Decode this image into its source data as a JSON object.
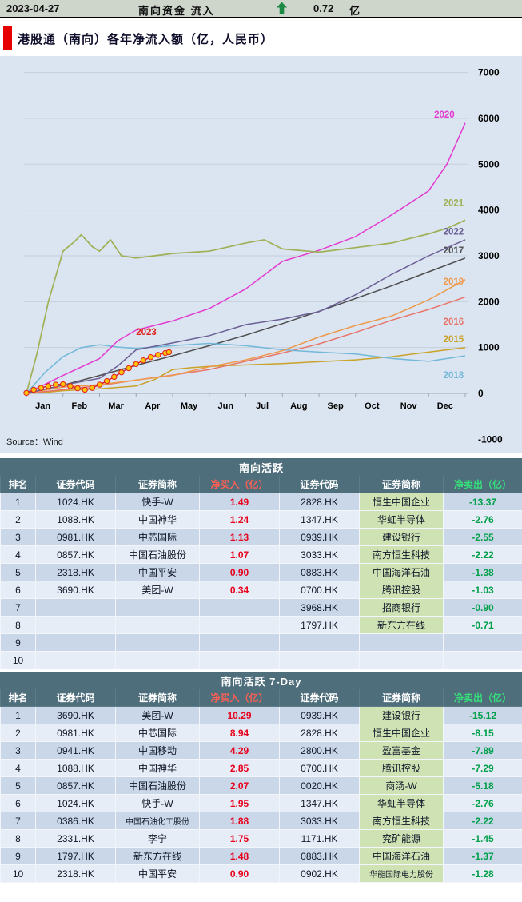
{
  "topbar": {
    "date": "2023-04-27",
    "label": "南向资金 流入",
    "value": "0.72",
    "unit": "亿",
    "arrow_icon": "up-arrow",
    "arrow_color": "#1d8a43"
  },
  "title": {
    "text": "港股通（南向）各年净流入额（亿，人民币）"
  },
  "chart_data": {
    "type": "line",
    "title": "港股通（南向）各年净流入额（亿，人民币）",
    "ylabel": "净流入额（亿，人民币）",
    "ylim": [
      -1000,
      7000
    ],
    "yticks": [
      7000,
      6000,
      5000,
      4000,
      3000,
      2000,
      1000,
      0,
      -1000
    ],
    "xticklabels": [
      "Jan",
      "Feb",
      "Mar",
      "Apr",
      "May",
      "Jun",
      "Jul",
      "Aug",
      "Sep",
      "Oct",
      "Nov",
      "Dec"
    ],
    "grid": true,
    "legend_position": "inline-right",
    "source": "Source：Wind",
    "series": [
      {
        "name": "2015",
        "color": "#c9a227",
        "label": [
          11.4,
          1120
        ],
        "points": [
          [
            0,
            0
          ],
          [
            0.5,
            20
          ],
          [
            1,
            60
          ],
          [
            2,
            100
          ],
          [
            3,
            160
          ],
          [
            3.5,
            300
          ],
          [
            4,
            520
          ],
          [
            4.5,
            560
          ],
          [
            5,
            590
          ],
          [
            6,
            620
          ],
          [
            7,
            650
          ],
          [
            8,
            690
          ],
          [
            9,
            730
          ],
          [
            10,
            800
          ],
          [
            11,
            900
          ],
          [
            12,
            1000
          ]
        ]
      },
      {
        "name": "2016",
        "color": "#e8756a",
        "label": [
          11.4,
          1500
        ],
        "points": [
          [
            0,
            0
          ],
          [
            1,
            80
          ],
          [
            2,
            170
          ],
          [
            3,
            290
          ],
          [
            4,
            400
          ],
          [
            5,
            520
          ],
          [
            6,
            700
          ],
          [
            7,
            880
          ],
          [
            8,
            1080
          ],
          [
            9,
            1330
          ],
          [
            10,
            1600
          ],
          [
            11,
            1830
          ],
          [
            12,
            2100
          ]
        ]
      },
      {
        "name": "2017",
        "color": "#4d4d4d",
        "label": [
          11.4,
          3050
        ],
        "points": [
          [
            0,
            0
          ],
          [
            1,
            180
          ],
          [
            2,
            390
          ],
          [
            3,
            610
          ],
          [
            4,
            820
          ],
          [
            5,
            1040
          ],
          [
            6,
            1270
          ],
          [
            7,
            1520
          ],
          [
            8,
            1790
          ],
          [
            9,
            2070
          ],
          [
            10,
            2350
          ],
          [
            11,
            2650
          ],
          [
            12,
            2950
          ]
        ]
      },
      {
        "name": "2018",
        "color": "#72b8d8",
        "label": [
          11.4,
          330
        ],
        "points": [
          [
            0,
            0
          ],
          [
            0.5,
            450
          ],
          [
            1,
            800
          ],
          [
            1.5,
            1000
          ],
          [
            2,
            1060
          ],
          [
            2.5,
            1010
          ],
          [
            3,
            980
          ],
          [
            4,
            1040
          ],
          [
            5,
            1090
          ],
          [
            6,
            1040
          ],
          [
            7,
            950
          ],
          [
            8,
            900
          ],
          [
            9,
            860
          ],
          [
            10,
            760
          ],
          [
            11,
            700
          ],
          [
            12,
            820
          ]
        ]
      },
      {
        "name": "2019",
        "color": "#ef9849",
        "label": [
          11.4,
          2370
        ],
        "points": [
          [
            0,
            0
          ],
          [
            1,
            140
          ],
          [
            2,
            190
          ],
          [
            3,
            290
          ],
          [
            4,
            390
          ],
          [
            5,
            580
          ],
          [
            6,
            730
          ],
          [
            7,
            930
          ],
          [
            8,
            1230
          ],
          [
            9,
            1480
          ],
          [
            10,
            1690
          ],
          [
            11,
            2040
          ],
          [
            12,
            2480
          ]
        ]
      },
      {
        "name": "2020",
        "color": "#e23bd0",
        "label": [
          11.15,
          6020
        ],
        "points": [
          [
            0,
            0
          ],
          [
            1,
            390
          ],
          [
            2,
            760
          ],
          [
            2.5,
            1150
          ],
          [
            3,
            1380
          ],
          [
            4,
            1580
          ],
          [
            5,
            1850
          ],
          [
            6,
            2280
          ],
          [
            7,
            2880
          ],
          [
            8,
            3120
          ],
          [
            9,
            3420
          ],
          [
            10,
            3900
          ],
          [
            11,
            4420
          ],
          [
            11.5,
            5000
          ],
          [
            12,
            5900
          ]
        ]
      },
      {
        "name": "2021",
        "color": "#9fb055",
        "label": [
          11.4,
          4090
        ],
        "width": 1.7,
        "points": [
          [
            0,
            0
          ],
          [
            0.3,
            900
          ],
          [
            0.6,
            2000
          ],
          [
            1,
            3100
          ],
          [
            1.3,
            3300
          ],
          [
            1.5,
            3460
          ],
          [
            1.8,
            3200
          ],
          [
            2,
            3100
          ],
          [
            2.3,
            3350
          ],
          [
            2.6,
            3000
          ],
          [
            3,
            2950
          ],
          [
            3.5,
            3000
          ],
          [
            4,
            3050
          ],
          [
            5,
            3100
          ],
          [
            6,
            3280
          ],
          [
            6.5,
            3350
          ],
          [
            7,
            3150
          ],
          [
            8,
            3080
          ],
          [
            9,
            3180
          ],
          [
            10,
            3280
          ],
          [
            11,
            3480
          ],
          [
            11.5,
            3600
          ],
          [
            12,
            3780
          ]
        ]
      },
      {
        "name": "2022",
        "color": "#6b5f95",
        "label": [
          11.4,
          3460
        ],
        "points": [
          [
            0,
            0
          ],
          [
            1,
            180
          ],
          [
            2,
            330
          ],
          [
            2.5,
            600
          ],
          [
            3,
            950
          ],
          [
            4,
            1100
          ],
          [
            5,
            1260
          ],
          [
            6,
            1500
          ],
          [
            7,
            1620
          ],
          [
            8,
            1780
          ],
          [
            9,
            2150
          ],
          [
            10,
            2600
          ],
          [
            11,
            3000
          ],
          [
            12,
            3350
          ]
        ]
      },
      {
        "name": "2023",
        "color": "#e01f1f",
        "label": [
          3.0,
          1270
        ],
        "marker": true,
        "points": [
          [
            0,
            10
          ],
          [
            0.2,
            80
          ],
          [
            0.4,
            120
          ],
          [
            0.6,
            160
          ],
          [
            0.8,
            190
          ],
          [
            1,
            200
          ],
          [
            1.2,
            160
          ],
          [
            1.4,
            110
          ],
          [
            1.6,
            80
          ],
          [
            1.8,
            120
          ],
          [
            2,
            190
          ],
          [
            2.2,
            270
          ],
          [
            2.4,
            360
          ],
          [
            2.6,
            460
          ],
          [
            2.8,
            550
          ],
          [
            3,
            640
          ],
          [
            3.2,
            720
          ],
          [
            3.4,
            790
          ],
          [
            3.6,
            840
          ],
          [
            3.8,
            880
          ],
          [
            3.9,
            900
          ]
        ]
      }
    ]
  },
  "tables": [
    {
      "title": "南向活跃",
      "headers": [
        "排名",
        "证券代码",
        "证券简称",
        "净买入（亿）",
        "证券代码",
        "证券简称",
        "净卖出（亿）"
      ],
      "rows": [
        [
          "1",
          "1024.HK",
          "快手-W",
          "1.49",
          "2828.HK",
          "恒生中国企业",
          "-13.37"
        ],
        [
          "2",
          "1088.HK",
          "中国神华",
          "1.24",
          "1347.HK",
          "华虹半导体",
          "-2.76"
        ],
        [
          "3",
          "0981.HK",
          "中芯国际",
          "1.13",
          "0939.HK",
          "建设银行",
          "-2.55"
        ],
        [
          "4",
          "0857.HK",
          "中国石油股份",
          "1.07",
          "3033.HK",
          "南方恒生科技",
          "-2.22"
        ],
        [
          "5",
          "2318.HK",
          "中国平安",
          "0.90",
          "0883.HK",
          "中国海洋石油",
          "-1.38"
        ],
        [
          "6",
          "3690.HK",
          "美团-W",
          "0.34",
          "0700.HK",
          "腾讯控股",
          "-1.03"
        ],
        [
          "7",
          "",
          "",
          "",
          "3968.HK",
          "招商银行",
          "-0.90"
        ],
        [
          "8",
          "",
          "",
          "",
          "1797.HK",
          "新东方在线",
          "-0.71"
        ],
        [
          "9",
          "",
          "",
          "",
          "",
          "",
          ""
        ],
        [
          "10",
          "",
          "",
          "",
          "",
          "",
          ""
        ]
      ]
    },
    {
      "title": "南向活跃 7-Day",
      "headers": [
        "排名",
        "证券代码",
        "证券简称",
        "净买入（亿）",
        "证券代码",
        "证券简称",
        "净卖出（亿）"
      ],
      "rows": [
        [
          "1",
          "3690.HK",
          "美团-W",
          "10.29",
          "0939.HK",
          "建设银行",
          "-15.12"
        ],
        [
          "2",
          "0981.HK",
          "中芯国际",
          "8.94",
          "2828.HK",
          "恒生中国企业",
          "-8.15"
        ],
        [
          "3",
          "0941.HK",
          "中国移动",
          "4.29",
          "2800.HK",
          "盈富基金",
          "-7.89"
        ],
        [
          "4",
          "1088.HK",
          "中国神华",
          "2.85",
          "0700.HK",
          "腾讯控股",
          "-7.29"
        ],
        [
          "5",
          "0857.HK",
          "中国石油股份",
          "2.07",
          "0020.HK",
          "商汤-W",
          "-5.18"
        ],
        [
          "6",
          "1024.HK",
          "快手-W",
          "1.95",
          "1347.HK",
          "华虹半导体",
          "-2.76"
        ],
        [
          "7",
          "0386.HK",
          "中国石油化工股份",
          "1.88",
          "3033.HK",
          "南方恒生科技",
          "-2.22"
        ],
        [
          "8",
          "2331.HK",
          "李宁",
          "1.75",
          "1171.HK",
          "兖矿能源",
          "-1.45"
        ],
        [
          "9",
          "1797.HK",
          "新东方在线",
          "1.48",
          "0883.HK",
          "中国海洋石油",
          "-1.37"
        ],
        [
          "10",
          "2318.HK",
          "中国平安",
          "0.90",
          "0902.HK",
          "华能国际电力股份",
          "-1.28"
        ]
      ]
    }
  ],
  "colors": {
    "topbar_bg": "#ced5cb",
    "accent": "#e60000",
    "panel": "#dbe5f1",
    "band": "#4e6e7c",
    "row_odd": "#c9d7e8",
    "row_even": "#e7edf6",
    "buy": "#e8001c",
    "sell": "#00a04a",
    "sell_name_bg": "#cfe2b4",
    "header_buy": "#ff5f52",
    "header_sell": "#36df7a",
    "grid": "#c6cfda",
    "axis": "#9aa6b2",
    "marker_fill": "#ffc103"
  }
}
